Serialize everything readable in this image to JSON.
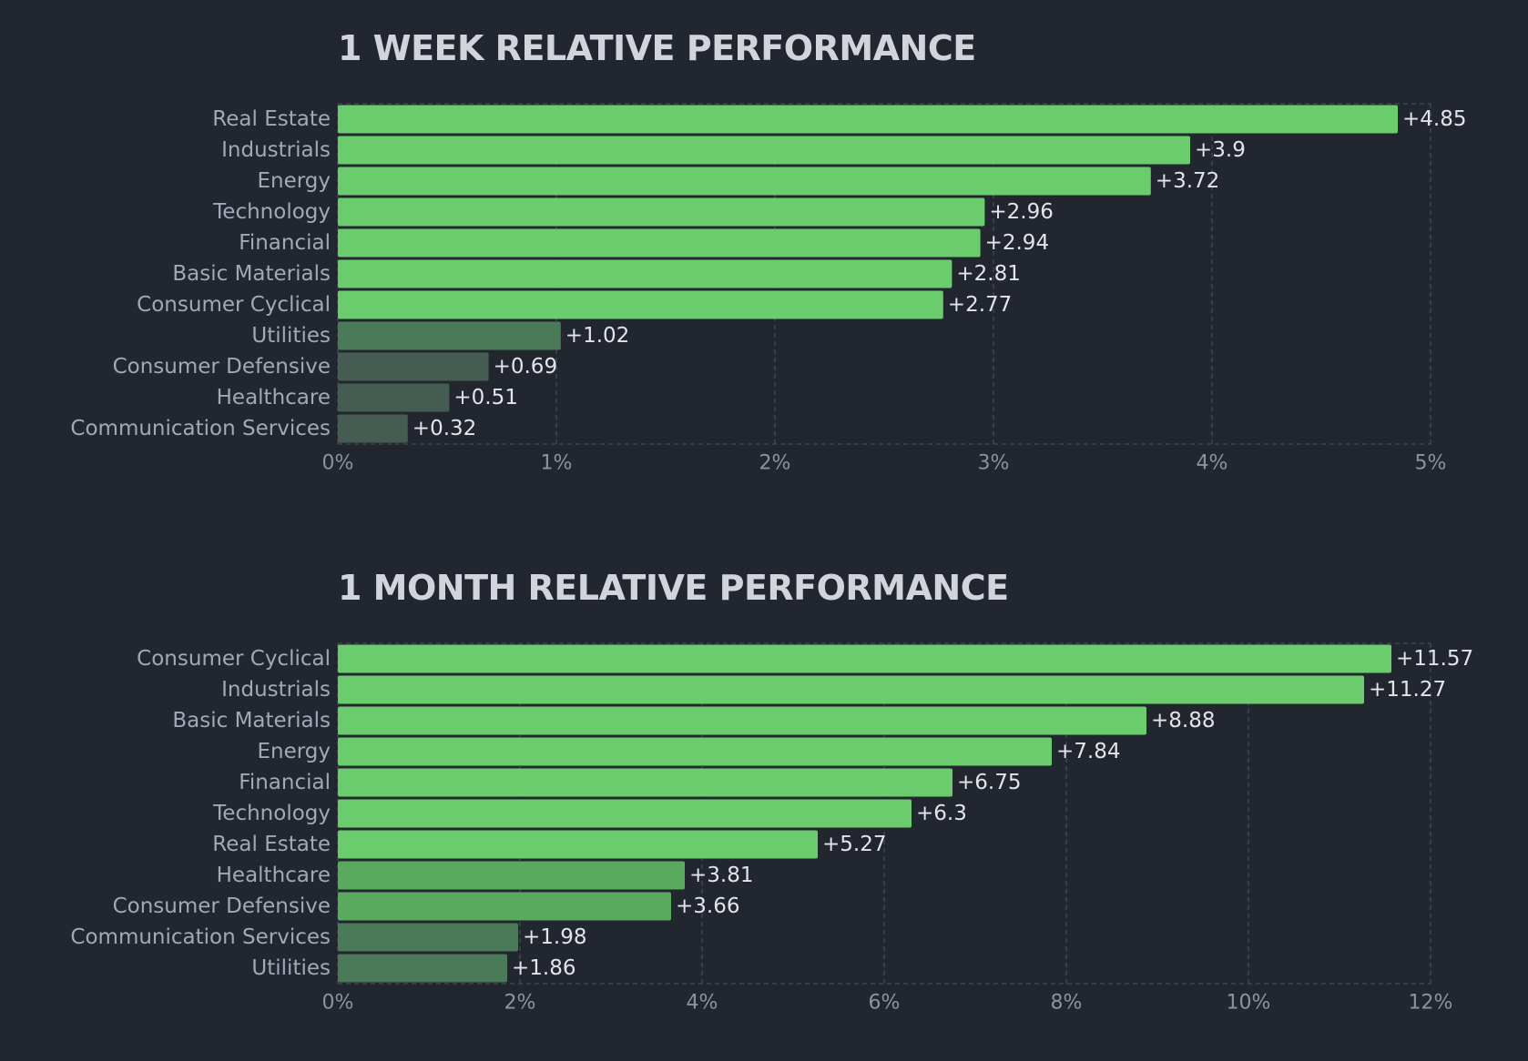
{
  "chart_data": [
    {
      "type": "bar",
      "orientation": "horizontal",
      "title": "1 WEEK RELATIVE PERFORMANCE",
      "categories": [
        "Real Estate",
        "Industrials",
        "Energy",
        "Technology",
        "Financial",
        "Basic Materials",
        "Consumer Cyclical",
        "Utilities",
        "Consumer Defensive",
        "Healthcare",
        "Communication Services"
      ],
      "values": [
        4.85,
        3.9,
        3.72,
        2.96,
        2.94,
        2.81,
        2.77,
        1.02,
        0.69,
        0.51,
        0.32
      ],
      "value_labels": [
        "+4.85",
        "+3.9",
        "+3.72",
        "+2.96",
        "+2.94",
        "+2.81",
        "+2.77",
        "+1.02",
        "+0.69",
        "+0.51",
        "+0.32"
      ],
      "xlim": [
        0,
        5
      ],
      "x_ticks": [
        "0%",
        "1%",
        "2%",
        "3%",
        "4%",
        "5%"
      ],
      "grid": true,
      "colors": {
        "strong": "#6acc6d",
        "medium": "#5aaa5d",
        "weak": "#4a7a57",
        "faint": "#445c52"
      }
    },
    {
      "type": "bar",
      "orientation": "horizontal",
      "title": "1 MONTH RELATIVE PERFORMANCE",
      "categories": [
        "Consumer Cyclical",
        "Industrials",
        "Basic Materials",
        "Energy",
        "Financial",
        "Technology",
        "Real Estate",
        "Healthcare",
        "Consumer Defensive",
        "Communication Services",
        "Utilities"
      ],
      "values": [
        11.57,
        11.27,
        8.88,
        7.84,
        6.75,
        6.3,
        5.27,
        3.81,
        3.66,
        1.98,
        1.86
      ],
      "value_labels": [
        "+11.57",
        "+11.27",
        "+8.88",
        "+7.84",
        "+6.75",
        "+6.3",
        "+5.27",
        "+3.81",
        "+3.66",
        "+1.98",
        "+1.86"
      ],
      "xlim": [
        0,
        12
      ],
      "x_ticks": [
        "0%",
        "2%",
        "4%",
        "6%",
        "8%",
        "10%",
        "12%"
      ],
      "grid": true,
      "colors": {
        "strong": "#6acc6d",
        "medium": "#5aaa5d",
        "weak": "#4a7a57",
        "faint": "#445c52"
      }
    }
  ],
  "background_color": "#22262f"
}
